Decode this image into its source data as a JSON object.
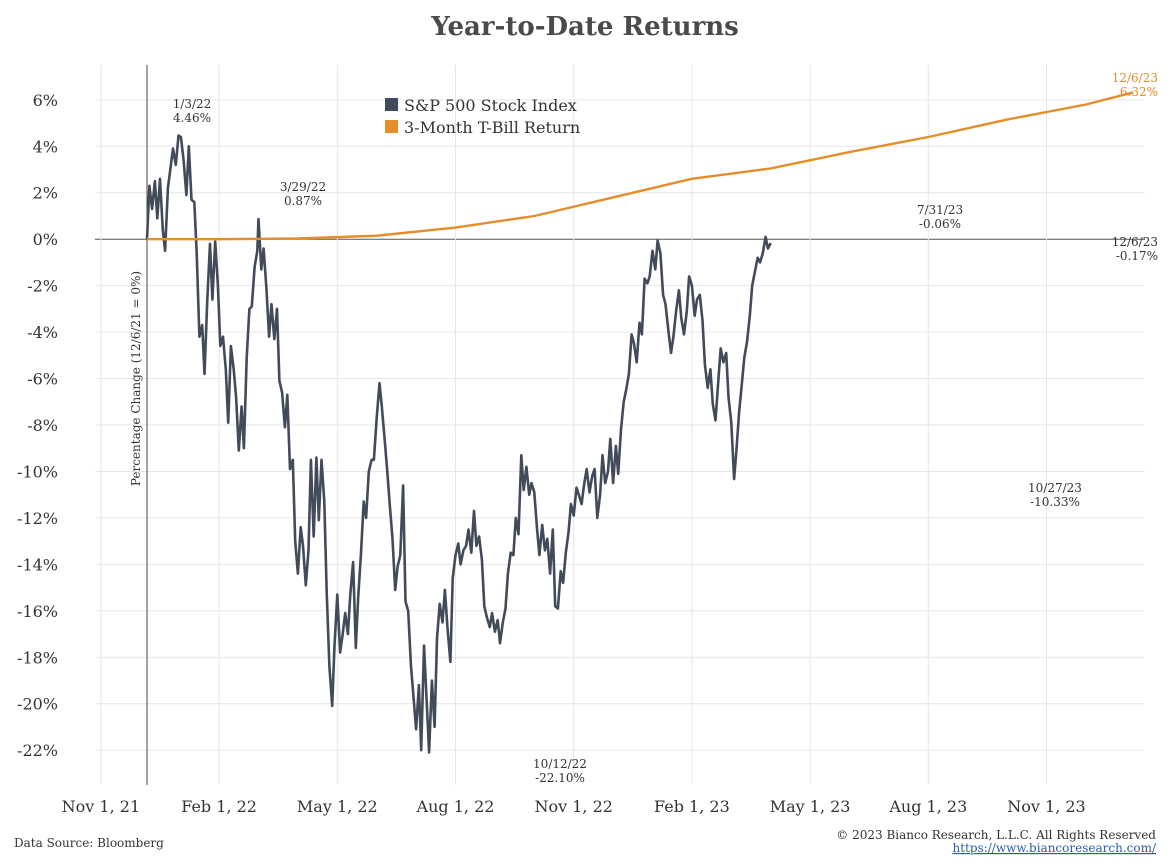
{
  "chart_data": {
    "type": "line",
    "title": "Year-to-Date Returns",
    "ylabel": "Percentage Change (12/6/21 = 0%)",
    "xlabel": "",
    "ylim": [
      -23.5,
      7.5
    ],
    "yticks": [
      6,
      4,
      2,
      0,
      -2,
      -4,
      -6,
      -8,
      -10,
      -12,
      -14,
      -16,
      -18,
      -20,
      -22
    ],
    "ytick_labels": [
      "6%",
      "4%",
      "2%",
      "0%",
      "-2%",
      "-4%",
      "-6%",
      "-8%",
      "-10%",
      "-12%",
      "-14%",
      "-16%",
      "-18%",
      "-20%",
      "-22%"
    ],
    "xticks": [
      "Nov 1, 21",
      "Feb 1, 22",
      "May 1, 22",
      "Aug 1, 22",
      "Nov 1, 22",
      "Feb 1, 23",
      "May 1, 23",
      "Aug 1, 23",
      "Nov 1, 23"
    ],
    "x_unit": "months since Nov 1, 21",
    "xlim": [
      -0.15,
      26.5
    ],
    "legend": [
      "S&P 500 Stock Index",
      "3-Month T-Bill Return"
    ],
    "legend_position": "top-center",
    "series": [
      {
        "name": "S&P 500 Stock Index",
        "color": "#434a59",
        "points": [
          [
            1.17,
            0
          ],
          [
            1.23,
            2.3
          ],
          [
            1.3,
            1.3
          ],
          [
            1.37,
            2.5
          ],
          [
            1.43,
            0.9
          ],
          [
            1.5,
            2.6
          ],
          [
            1.57,
            0.4
          ],
          [
            1.63,
            -0.5
          ],
          [
            1.7,
            2.2
          ],
          [
            1.77,
            3.1
          ],
          [
            1.83,
            3.9
          ],
          [
            1.9,
            3.2
          ],
          [
            1.97,
            4.46
          ],
          [
            2.03,
            4.4
          ],
          [
            2.1,
            3.4
          ],
          [
            2.17,
            1.9
          ],
          [
            2.23,
            4.0
          ],
          [
            2.3,
            1.7
          ],
          [
            2.37,
            1.6
          ],
          [
            2.43,
            -0.6
          ],
          [
            2.5,
            -4.2
          ],
          [
            2.57,
            -3.7
          ],
          [
            2.63,
            -5.8
          ],
          [
            2.7,
            -2.6
          ],
          [
            2.77,
            -0.2
          ],
          [
            2.83,
            -2.6
          ],
          [
            2.9,
            -0.1
          ],
          [
            2.97,
            -2.0
          ],
          [
            3.03,
            -4.6
          ],
          [
            3.1,
            -4.2
          ],
          [
            3.17,
            -5.6
          ],
          [
            3.23,
            -7.9
          ],
          [
            3.3,
            -4.6
          ],
          [
            3.37,
            -5.6
          ],
          [
            3.43,
            -6.8
          ],
          [
            3.5,
            -9.1
          ],
          [
            3.57,
            -7.2
          ],
          [
            3.63,
            -9.0
          ],
          [
            3.7,
            -5.1
          ],
          [
            3.77,
            -3.0
          ],
          [
            3.83,
            -2.9
          ],
          [
            3.9,
            -1.2
          ],
          [
            3.97,
            -0.5
          ],
          [
            4.0,
            0.87
          ],
          [
            4.07,
            -1.3
          ],
          [
            4.13,
            -0.4
          ],
          [
            4.2,
            -2.1
          ],
          [
            4.27,
            -4.2
          ],
          [
            4.33,
            -2.8
          ],
          [
            4.4,
            -4.3
          ],
          [
            4.47,
            -3.0
          ],
          [
            4.53,
            -6.1
          ],
          [
            4.6,
            -6.6
          ],
          [
            4.67,
            -8.1
          ],
          [
            4.73,
            -6.7
          ],
          [
            4.8,
            -9.9
          ],
          [
            4.87,
            -9.5
          ],
          [
            4.93,
            -13.0
          ],
          [
            5.0,
            -14.4
          ],
          [
            5.07,
            -12.4
          ],
          [
            5.13,
            -13.2
          ],
          [
            5.2,
            -14.9
          ],
          [
            5.27,
            -13.4
          ],
          [
            5.33,
            -9.5
          ],
          [
            5.4,
            -12.8
          ],
          [
            5.47,
            -9.4
          ],
          [
            5.53,
            -12.1
          ],
          [
            5.6,
            -9.5
          ],
          [
            5.67,
            -11.3
          ],
          [
            5.73,
            -15.2
          ],
          [
            5.8,
            -18.4
          ],
          [
            5.87,
            -20.1
          ],
          [
            5.93,
            -17.5
          ],
          [
            6.0,
            -15.3
          ],
          [
            6.07,
            -17.8
          ],
          [
            6.13,
            -17.1
          ],
          [
            6.2,
            -16.1
          ],
          [
            6.27,
            -17.0
          ],
          [
            6.33,
            -15.3
          ],
          [
            6.4,
            -13.9
          ],
          [
            6.47,
            -17.6
          ],
          [
            6.53,
            -15.4
          ],
          [
            6.6,
            -13.6
          ],
          [
            6.67,
            -11.3
          ],
          [
            6.73,
            -12.0
          ],
          [
            6.8,
            -10.0
          ],
          [
            6.87,
            -9.5
          ],
          [
            6.93,
            -9.5
          ],
          [
            7.0,
            -7.7
          ],
          [
            7.07,
            -6.2
          ],
          [
            7.13,
            -7.2
          ],
          [
            7.2,
            -8.6
          ],
          [
            7.27,
            -10.0
          ],
          [
            7.33,
            -11.4
          ],
          [
            7.4,
            -12.9
          ],
          [
            7.47,
            -15.1
          ],
          [
            7.53,
            -14.1
          ],
          [
            7.6,
            -13.6
          ],
          [
            7.67,
            -10.6
          ],
          [
            7.73,
            -15.6
          ],
          [
            7.8,
            -16.0
          ],
          [
            7.87,
            -18.4
          ],
          [
            7.93,
            -19.6
          ],
          [
            8.0,
            -21.1
          ],
          [
            8.07,
            -19.2
          ],
          [
            8.13,
            -22.0
          ],
          [
            8.2,
            -17.5
          ],
          [
            8.27,
            -19.9
          ],
          [
            8.33,
            -22.1
          ],
          [
            8.4,
            -19.0
          ],
          [
            8.47,
            -21.0
          ],
          [
            8.53,
            -17.2
          ],
          [
            8.6,
            -15.7
          ],
          [
            8.67,
            -16.5
          ],
          [
            8.73,
            -15.1
          ],
          [
            8.8,
            -16.8
          ],
          [
            8.87,
            -18.2
          ],
          [
            8.93,
            -14.6
          ],
          [
            9.0,
            -13.6
          ],
          [
            9.07,
            -13.1
          ],
          [
            9.13,
            -14.0
          ],
          [
            9.2,
            -13.4
          ],
          [
            9.27,
            -13.2
          ],
          [
            9.33,
            -12.5
          ],
          [
            9.4,
            -13.5
          ],
          [
            9.47,
            -11.7
          ],
          [
            9.53,
            -13.2
          ],
          [
            9.6,
            -12.8
          ],
          [
            9.67,
            -13.8
          ],
          [
            9.73,
            -15.8
          ],
          [
            9.8,
            -16.3
          ],
          [
            9.87,
            -16.7
          ],
          [
            9.93,
            -16.1
          ],
          [
            10.0,
            -16.9
          ],
          [
            10.07,
            -16.4
          ],
          [
            10.13,
            -17.4
          ],
          [
            10.2,
            -16.5
          ],
          [
            10.27,
            -15.9
          ],
          [
            10.33,
            -14.4
          ],
          [
            10.4,
            -13.5
          ],
          [
            10.47,
            -13.6
          ],
          [
            10.53,
            -12.0
          ],
          [
            10.6,
            -12.7
          ],
          [
            10.67,
            -9.3
          ],
          [
            10.73,
            -10.8
          ],
          [
            10.8,
            -9.8
          ],
          [
            10.87,
            -11.0
          ],
          [
            10.93,
            -10.5
          ],
          [
            11.0,
            -10.9
          ],
          [
            11.07,
            -12.5
          ],
          [
            11.13,
            -13.6
          ],
          [
            11.2,
            -12.3
          ],
          [
            11.27,
            -13.4
          ],
          [
            11.33,
            -12.9
          ],
          [
            11.4,
            -14.4
          ],
          [
            11.47,
            -12.5
          ],
          [
            11.53,
            -15.8
          ],
          [
            11.6,
            -15.9
          ],
          [
            11.67,
            -14.3
          ],
          [
            11.73,
            -14.8
          ],
          [
            11.8,
            -13.5
          ],
          [
            11.87,
            -12.6
          ],
          [
            11.93,
            -11.4
          ],
          [
            12.0,
            -11.9
          ],
          [
            12.07,
            -10.7
          ],
          [
            12.13,
            -11.0
          ],
          [
            12.2,
            -11.4
          ],
          [
            12.27,
            -10.5
          ],
          [
            12.33,
            -9.9
          ],
          [
            12.4,
            -10.9
          ],
          [
            12.47,
            -10.2
          ],
          [
            12.53,
            -9.9
          ],
          [
            12.6,
            -12.0
          ],
          [
            12.67,
            -11.0
          ],
          [
            12.73,
            -9.3
          ],
          [
            12.8,
            -10.5
          ],
          [
            12.87,
            -10.0
          ],
          [
            12.93,
            -8.6
          ],
          [
            13.0,
            -10.5
          ],
          [
            13.07,
            -8.9
          ],
          [
            13.13,
            -10.1
          ],
          [
            13.2,
            -8.2
          ],
          [
            13.27,
            -7.0
          ],
          [
            13.33,
            -6.5
          ],
          [
            13.4,
            -5.8
          ],
          [
            13.47,
            -4.1
          ],
          [
            13.53,
            -4.5
          ],
          [
            13.6,
            -5.3
          ],
          [
            13.67,
            -3.6
          ],
          [
            13.73,
            -4.1
          ],
          [
            13.8,
            -1.7
          ],
          [
            13.87,
            -1.9
          ],
          [
            13.93,
            -1.6
          ],
          [
            14.0,
            -0.5
          ],
          [
            14.07,
            -1.3
          ],
          [
            14.13,
            -0.06
          ],
          [
            14.2,
            -0.6
          ],
          [
            14.27,
            -2.4
          ],
          [
            14.33,
            -2.8
          ],
          [
            14.4,
            -3.9
          ],
          [
            14.47,
            -4.9
          ],
          [
            14.53,
            -4.2
          ],
          [
            14.6,
            -3.1
          ],
          [
            14.67,
            -2.2
          ],
          [
            14.73,
            -3.4
          ],
          [
            14.8,
            -4.1
          ],
          [
            14.87,
            -3.1
          ],
          [
            14.93,
            -1.6
          ],
          [
            15.0,
            -2.0
          ],
          [
            15.07,
            -3.3
          ],
          [
            15.13,
            -2.6
          ],
          [
            15.2,
            -2.4
          ],
          [
            15.27,
            -3.5
          ],
          [
            15.33,
            -5.4
          ],
          [
            15.4,
            -6.4
          ],
          [
            15.47,
            -5.6
          ],
          [
            15.53,
            -7.1
          ],
          [
            15.6,
            -7.8
          ],
          [
            15.67,
            -6.1
          ],
          [
            15.73,
            -4.7
          ],
          [
            15.8,
            -5.3
          ],
          [
            15.87,
            -4.9
          ],
          [
            15.93,
            -6.8
          ],
          [
            16.0,
            -7.9
          ],
          [
            16.07,
            -10.33
          ],
          [
            16.13,
            -9.1
          ],
          [
            16.2,
            -7.4
          ],
          [
            16.27,
            -6.2
          ],
          [
            16.33,
            -5.1
          ],
          [
            16.4,
            -4.4
          ],
          [
            16.47,
            -3.3
          ],
          [
            16.53,
            -2.0
          ],
          [
            16.6,
            -1.4
          ],
          [
            16.67,
            -0.8
          ],
          [
            16.73,
            -1.0
          ],
          [
            16.8,
            -0.6
          ],
          [
            16.87,
            0.1
          ],
          [
            16.93,
            -0.4
          ],
          [
            17.0,
            -0.17
          ]
        ]
      },
      {
        "name": "3-Month T-Bill Return",
        "color": "#e58d2b",
        "points": [
          [
            1.17,
            0
          ],
          [
            3.0,
            0.0
          ],
          [
            5.0,
            0.03
          ],
          [
            7.0,
            0.15
          ],
          [
            9.0,
            0.5
          ],
          [
            11.0,
            1.0
          ],
          [
            13.0,
            1.8
          ],
          [
            15.0,
            2.6
          ],
          [
            17.0,
            3.05
          ],
          [
            19.0,
            3.75
          ],
          [
            21.0,
            4.4
          ],
          [
            23.0,
            5.15
          ],
          [
            25.0,
            5.8
          ],
          [
            26.2,
            6.32
          ]
        ]
      }
    ],
    "annotations": [
      {
        "date": "1/3/22",
        "value": "4.46%",
        "series": "S&P 500 Stock Index"
      },
      {
        "date": "3/29/22",
        "value": "0.87%",
        "series": "S&P 500 Stock Index"
      },
      {
        "date": "10/12/22",
        "value": "-22.10%",
        "series": "S&P 500 Stock Index"
      },
      {
        "date": "7/31/23",
        "value": "-0.06%",
        "series": "S&P 500 Stock Index"
      },
      {
        "date": "10/27/23",
        "value": "-10.33%",
        "series": "S&P 500 Stock Index"
      },
      {
        "date": "12/6/23",
        "value": "-0.17%",
        "series": "S&P 500 Stock Index"
      },
      {
        "date": "12/6/23",
        "value": "6.32%",
        "series": "3-Month T-Bill Return"
      }
    ]
  },
  "footer": {
    "source": "Data Source: Bloomberg",
    "copyright": "© 2023 Bianco Research, L.L.C. All Rights Reserved",
    "url": "https://www.biancoresearch.com/"
  }
}
